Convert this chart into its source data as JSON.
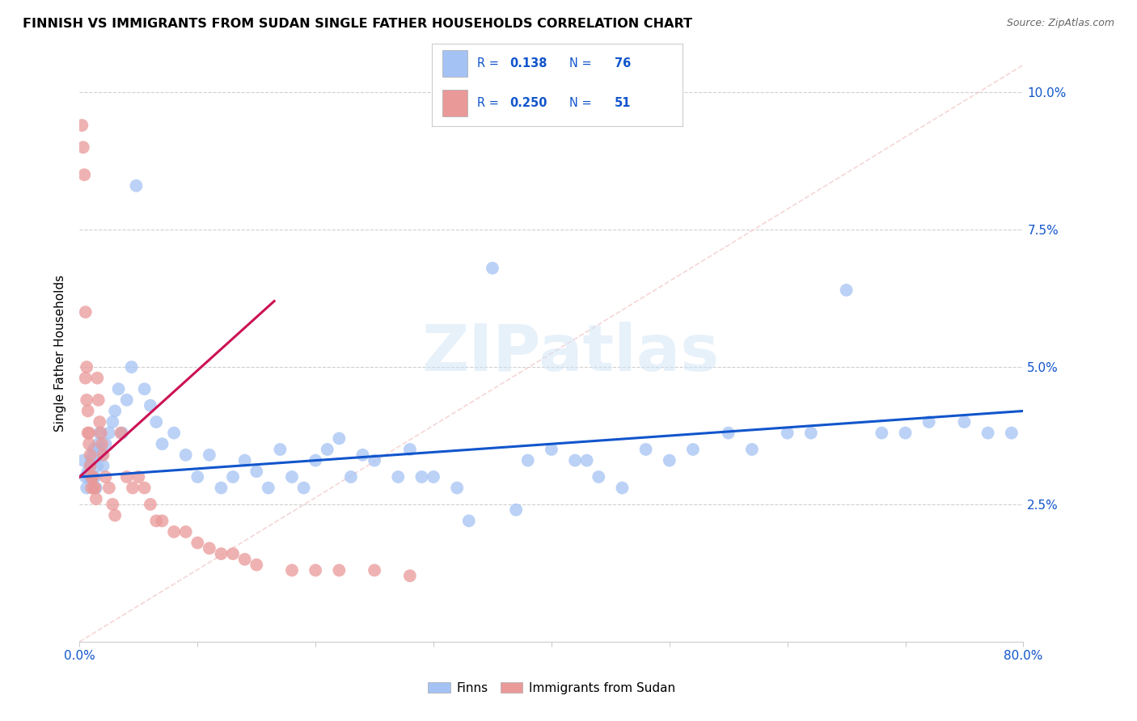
{
  "title": "FINNISH VS IMMIGRANTS FROM SUDAN SINGLE FATHER HOUSEHOLDS CORRELATION CHART",
  "source": "Source: ZipAtlas.com",
  "ylabel": "Single Father Households",
  "color_finns": "#a4c2f4",
  "color_sudan": "#ea9999",
  "color_finns_line": "#1155cc",
  "color_sudan_line": "#cc1155",
  "color_ytick": "#1155cc",
  "color_xtick": "#1155cc",
  "watermark_text": "ZIPatlas",
  "legend_finns_color": "#a4c2f4",
  "legend_sudan_color": "#ea9999",
  "xlim": [
    0.0,
    0.8
  ],
  "ylim": [
    0.0,
    0.105
  ],
  "ytick_vals": [
    0.0,
    0.025,
    0.05,
    0.075,
    0.1
  ],
  "ytick_labels": [
    "",
    "2.5%",
    "5.0%",
    "7.5%",
    "10.0%"
  ],
  "xtick_vals": [
    0.0,
    0.1,
    0.2,
    0.3,
    0.4,
    0.5,
    0.6,
    0.7,
    0.8
  ],
  "xlabel_show": [
    "0.0%",
    "80.0%"
  ],
  "finns_x": [
    0.003,
    0.005,
    0.006,
    0.007,
    0.008,
    0.009,
    0.01,
    0.011,
    0.012,
    0.013,
    0.014,
    0.015,
    0.016,
    0.017,
    0.018,
    0.019,
    0.02,
    0.022,
    0.025,
    0.028,
    0.03,
    0.033,
    0.036,
    0.04,
    0.044,
    0.048,
    0.055,
    0.06,
    0.065,
    0.07,
    0.08,
    0.09,
    0.1,
    0.11,
    0.12,
    0.13,
    0.14,
    0.15,
    0.16,
    0.17,
    0.18,
    0.19,
    0.2,
    0.21,
    0.22,
    0.23,
    0.24,
    0.25,
    0.27,
    0.28,
    0.3,
    0.32,
    0.33,
    0.35,
    0.37,
    0.38,
    0.4,
    0.42,
    0.44,
    0.46,
    0.48,
    0.5,
    0.52,
    0.55,
    0.57,
    0.6,
    0.62,
    0.65,
    0.68,
    0.7,
    0.72,
    0.75,
    0.77,
    0.79,
    0.43,
    0.29
  ],
  "finns_y": [
    0.033,
    0.03,
    0.028,
    0.031,
    0.03,
    0.032,
    0.033,
    0.034,
    0.035,
    0.03,
    0.028,
    0.032,
    0.036,
    0.038,
    0.035,
    0.034,
    0.032,
    0.036,
    0.038,
    0.04,
    0.042,
    0.046,
    0.038,
    0.044,
    0.05,
    0.083,
    0.046,
    0.043,
    0.04,
    0.036,
    0.038,
    0.034,
    0.03,
    0.034,
    0.028,
    0.03,
    0.033,
    0.031,
    0.028,
    0.035,
    0.03,
    0.028,
    0.033,
    0.035,
    0.037,
    0.03,
    0.034,
    0.033,
    0.03,
    0.035,
    0.03,
    0.028,
    0.022,
    0.068,
    0.024,
    0.033,
    0.035,
    0.033,
    0.03,
    0.028,
    0.035,
    0.033,
    0.035,
    0.038,
    0.035,
    0.038,
    0.038,
    0.064,
    0.038,
    0.038,
    0.04,
    0.04,
    0.038,
    0.038,
    0.033,
    0.03
  ],
  "sudan_x": [
    0.002,
    0.003,
    0.004,
    0.005,
    0.005,
    0.006,
    0.006,
    0.007,
    0.007,
    0.008,
    0.008,
    0.009,
    0.009,
    0.01,
    0.01,
    0.011,
    0.011,
    0.012,
    0.013,
    0.014,
    0.015,
    0.016,
    0.017,
    0.018,
    0.019,
    0.02,
    0.022,
    0.025,
    0.028,
    0.03,
    0.035,
    0.04,
    0.045,
    0.05,
    0.055,
    0.06,
    0.065,
    0.07,
    0.08,
    0.09,
    0.1,
    0.11,
    0.12,
    0.13,
    0.14,
    0.15,
    0.18,
    0.2,
    0.22,
    0.25,
    0.28
  ],
  "sudan_y": [
    0.094,
    0.09,
    0.085,
    0.06,
    0.048,
    0.05,
    0.044,
    0.042,
    0.038,
    0.038,
    0.036,
    0.034,
    0.032,
    0.03,
    0.028,
    0.03,
    0.03,
    0.028,
    0.028,
    0.026,
    0.048,
    0.044,
    0.04,
    0.038,
    0.036,
    0.034,
    0.03,
    0.028,
    0.025,
    0.023,
    0.038,
    0.03,
    0.028,
    0.03,
    0.028,
    0.025,
    0.022,
    0.022,
    0.02,
    0.02,
    0.018,
    0.017,
    0.016,
    0.016,
    0.015,
    0.014,
    0.013,
    0.013,
    0.013,
    0.013,
    0.012
  ],
  "finns_line_x": [
    0.0,
    0.8
  ],
  "finns_line_y": [
    0.03,
    0.042
  ],
  "sudan_line_x": [
    0.0,
    0.165
  ],
  "sudan_line_y": [
    0.03,
    0.062
  ],
  "diag_line_x": [
    0.0,
    0.8
  ],
  "diag_line_y": [
    0.0,
    0.105
  ]
}
